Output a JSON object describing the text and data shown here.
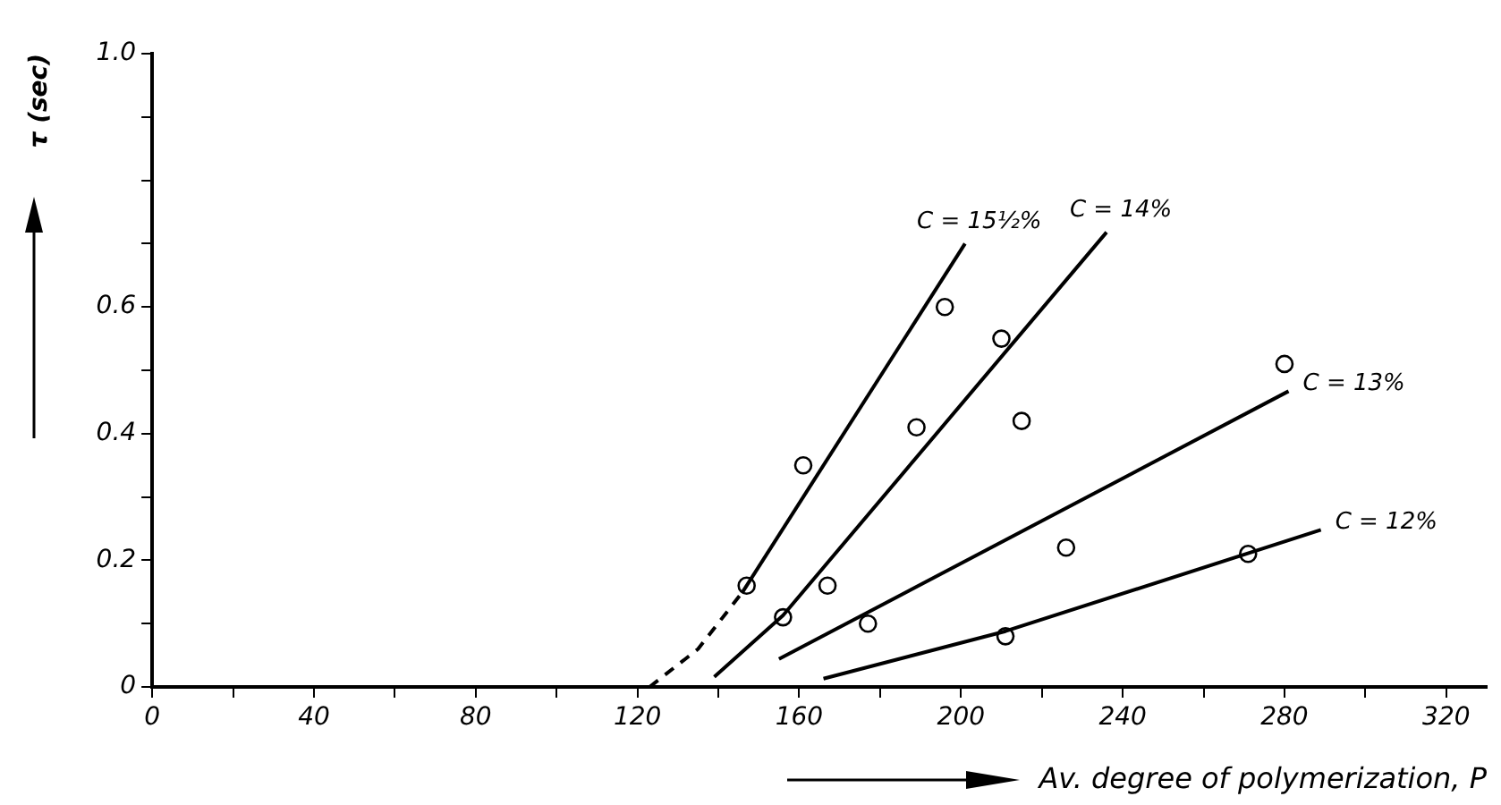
{
  "chart_data": {
    "type": "line",
    "xlabel": "Av. degree of polymerization, P",
    "ylabel": "τ (sec)",
    "xlim": [
      0,
      330
    ],
    "ylim": [
      0,
      1.0
    ],
    "xticks": [
      0,
      {
        "value": 20,
        "label": null
      },
      40,
      {
        "value": 60,
        "label": null
      },
      80,
      {
        "value": 100,
        "label": null
      },
      120,
      {
        "value": 140,
        "label": null
      },
      160,
      {
        "value": 180,
        "label": null
      },
      200,
      {
        "value": 220,
        "label": null
      },
      240,
      {
        "value": 260,
        "label": null
      },
      280,
      {
        "value": 300,
        "label": null
      },
      320
    ],
    "yticks": [
      0,
      {
        "value": 0.1,
        "label": null
      },
      0.2,
      {
        "value": 0.3,
        "label": null
      },
      0.4,
      {
        "value": 0.5,
        "label": null
      },
      0.6,
      {
        "value": 0.7,
        "label": null
      },
      {
        "value": 0.8,
        "label": null
      },
      {
        "value": 0.9,
        "label": null
      },
      {
        "value": 1.0,
        "label": "1.0"
      }
    ],
    "grid": false,
    "legend": false,
    "series": [
      {
        "line_style": "dashed",
        "marker": "none",
        "color": "#000000",
        "x": [
          123,
          135,
          146
        ],
        "values": [
          0,
          0.06,
          0.15
        ]
      },
      {
        "name": "C = 15½%",
        "marker": "none",
        "color": "#000000",
        "x": [
          146,
          201
        ],
        "values": [
          0.15,
          0.7
        ]
      },
      {
        "name": "C = 14%",
        "marker": "none",
        "color": "#000000",
        "x": [
          139,
          156,
          236
        ],
        "values": [
          0.016,
          0.113,
          0.718
        ]
      },
      {
        "name": "C = 13%",
        "marker": "none",
        "color": "#000000",
        "x": [
          155,
          281
        ],
        "values": [
          0.044,
          0.467
        ]
      },
      {
        "name": "C = 12%",
        "marker": "none",
        "color": "#000000",
        "x": [
          166,
          211,
          289
        ],
        "values": [
          0.013,
          0.088,
          0.248
        ]
      },
      {
        "type": "scatter",
        "marker": "circle",
        "color": "#000000",
        "x": [
          147,
          161,
          196
        ],
        "values": [
          0.16,
          0.35,
          0.6
        ]
      },
      {
        "type": "scatter",
        "marker": "circle",
        "color": "#000000",
        "x": [
          156,
          167,
          189,
          210,
          215
        ],
        "values": [
          0.11,
          0.16,
          0.41,
          0.55,
          0.42
        ]
      },
      {
        "type": "scatter",
        "marker": "circle",
        "color": "#000000",
        "x": [
          177,
          226,
          280
        ],
        "values": [
          0.1,
          0.22,
          0.51
        ]
      },
      {
        "type": "scatter",
        "marker": "circle",
        "color": "#000000",
        "x": [
          211,
          271
        ],
        "values": [
          0.08,
          0.21
        ]
      }
    ]
  }
}
